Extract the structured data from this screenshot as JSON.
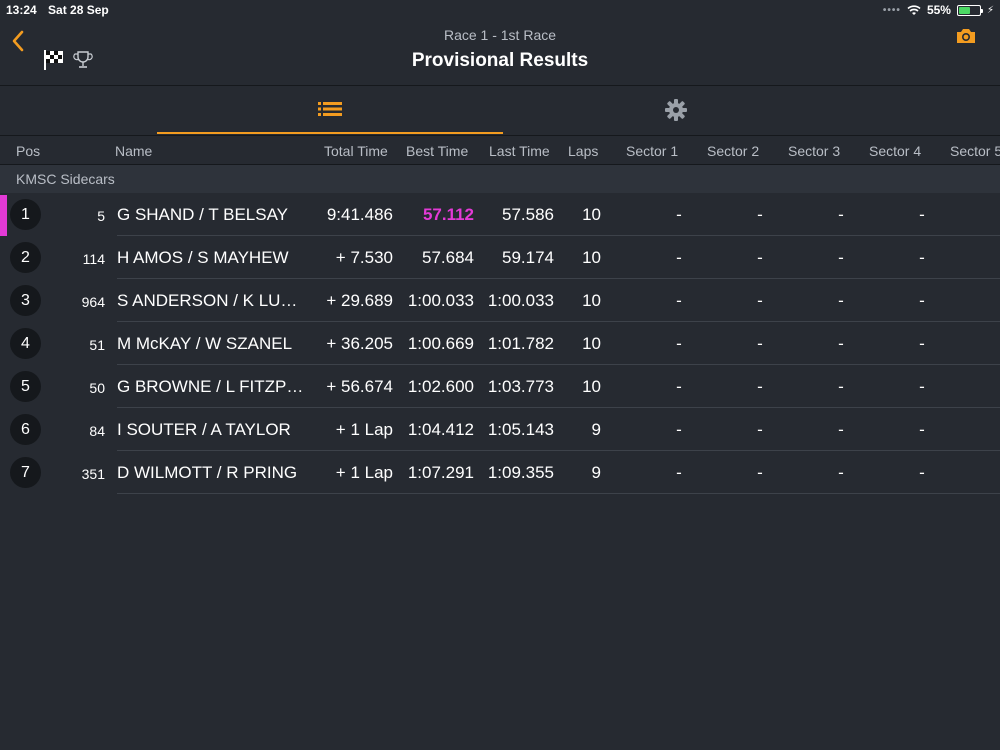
{
  "status_bar": {
    "time": "13:24",
    "date": "Sat 28 Sep",
    "battery_percent": "55%",
    "battery_level": 0.55
  },
  "header": {
    "subtitle": "Race 1 - 1st Race",
    "title": "Provisional Results"
  },
  "colors": {
    "accent": "#f39c20",
    "fastest": "#e33ad6",
    "background": "#262a31"
  },
  "columns": {
    "pos": "Pos",
    "name": "Name",
    "total_time": "Total Time",
    "best_time": "Best Time",
    "last_time": "Last Time",
    "laps": "Laps",
    "sector1": "Sector 1",
    "sector2": "Sector 2",
    "sector3": "Sector 3",
    "sector4": "Sector 4",
    "sector5": "Sector 5"
  },
  "group": "KMSC Sidecars",
  "rows": [
    {
      "pos": "1",
      "num": "5",
      "name": "G SHAND / T BELSAY",
      "total": "9:41.486",
      "best": "57.112",
      "last": "57.586",
      "laps": "10",
      "s1": "-",
      "s2": "-",
      "s3": "-",
      "s4": "-"
    },
    {
      "pos": "2",
      "num": "114",
      "name": "H AMOS / S MAYHEW",
      "total": "+ 7.530",
      "best": "57.684",
      "last": "59.174",
      "laps": "10",
      "s1": "-",
      "s2": "-",
      "s3": "-",
      "s4": "-"
    },
    {
      "pos": "3",
      "num": "964",
      "name": "S ANDERSON /  K LU…",
      "total": "+ 29.689",
      "best": "1:00.033",
      "last": "1:00.033",
      "laps": "10",
      "s1": "-",
      "s2": "-",
      "s3": "-",
      "s4": "-"
    },
    {
      "pos": "4",
      "num": "51",
      "name": "M McKAY / W SZANEL",
      "total": "+ 36.205",
      "best": "1:00.669",
      "last": "1:01.782",
      "laps": "10",
      "s1": "-",
      "s2": "-",
      "s3": "-",
      "s4": "-"
    },
    {
      "pos": "5",
      "num": "50",
      "name": "G BROWNE / L FITZP…",
      "total": "+ 56.674",
      "best": "1:02.600",
      "last": "1:03.773",
      "laps": "10",
      "s1": "-",
      "s2": "-",
      "s3": "-",
      "s4": "-"
    },
    {
      "pos": "6",
      "num": "84",
      "name": "I SOUTER / A TAYLOR",
      "total": "+ 1 Lap",
      "best": "1:04.412",
      "last": "1:05.143",
      "laps": "9",
      "s1": "-",
      "s2": "-",
      "s3": "-",
      "s4": "-"
    },
    {
      "pos": "7",
      "num": "351",
      "name": "D WILMOTT / R PRING",
      "total": "+ 1 Lap",
      "best": "1:07.291",
      "last": "1:09.355",
      "laps": "9",
      "s1": "-",
      "s2": "-",
      "s3": "-",
      "s4": "-"
    }
  ]
}
